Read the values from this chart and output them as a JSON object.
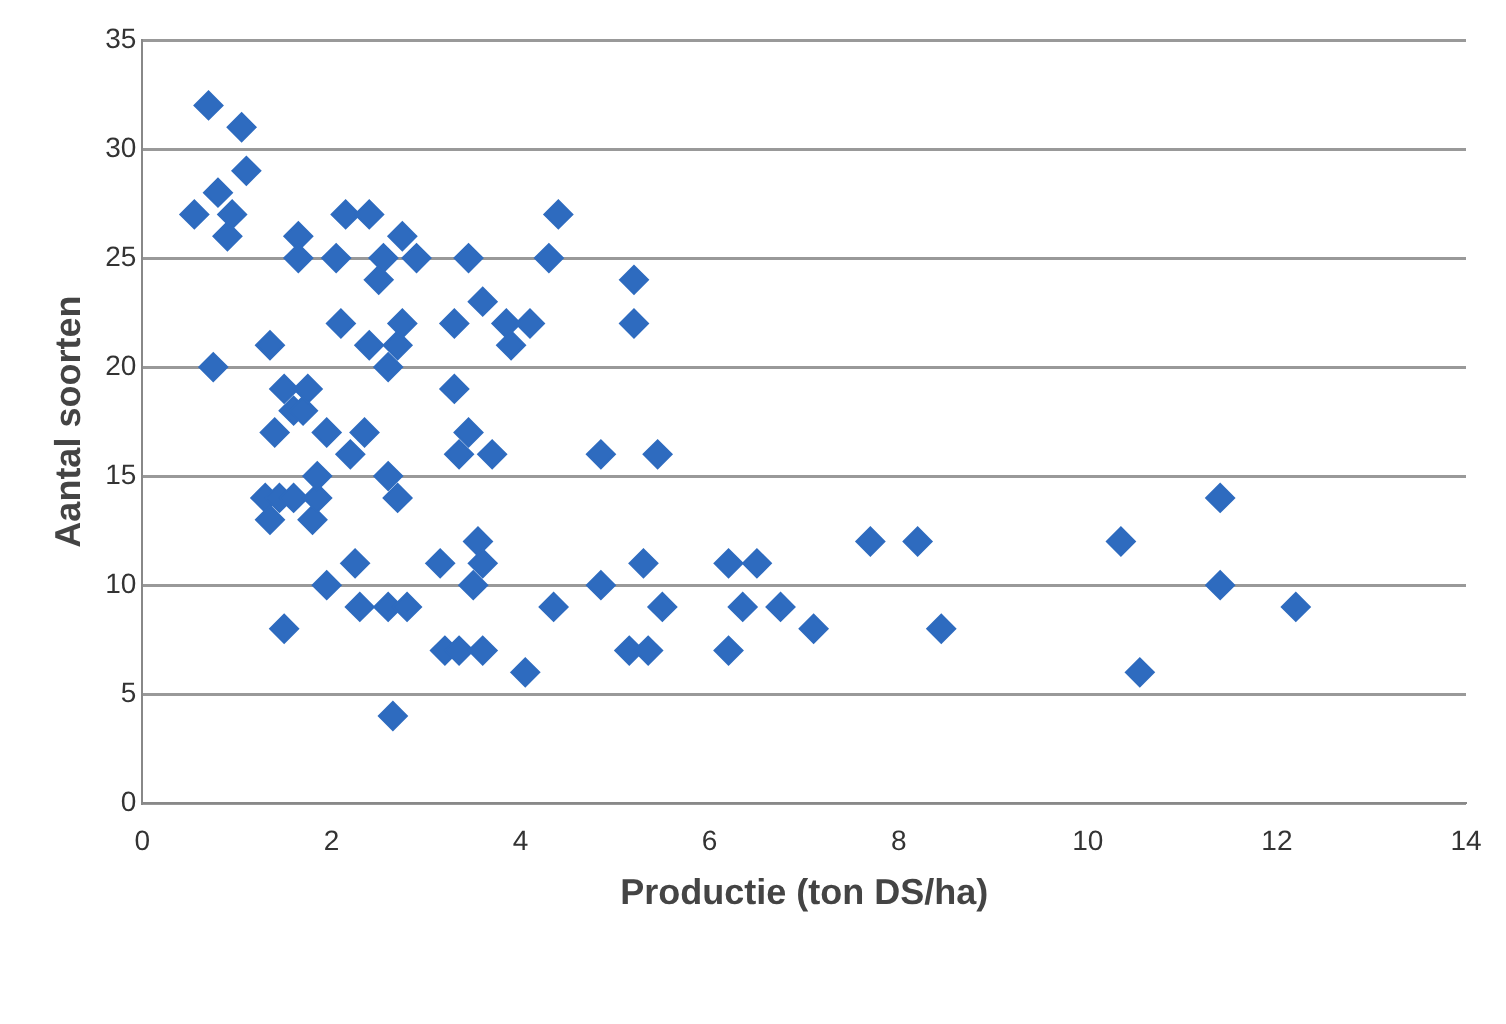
{
  "chart_data": {
    "type": "scatter",
    "xlabel": "Productie (ton DS/ha)",
    "ylabel": "Aantal soorten",
    "xlim": [
      0,
      14
    ],
    "xticks": [
      0,
      2,
      4,
      6,
      8,
      10,
      12,
      14
    ],
    "ylim": [
      0,
      35
    ],
    "yticks": [
      0,
      5,
      10,
      15,
      20,
      25,
      30,
      35
    ],
    "grid": "y",
    "legend": false,
    "marker": "diamond",
    "series": [
      {
        "color": "#2e6bbf",
        "x": [
          0.55,
          0.7,
          0.75,
          0.8,
          0.9,
          0.95,
          1.05,
          1.1,
          1.3,
          1.35,
          1.35,
          1.4,
          1.45,
          1.5,
          1.5,
          1.6,
          1.6,
          1.65,
          1.65,
          1.7,
          1.75,
          1.8,
          1.85,
          1.85,
          1.95,
          1.95,
          2.05,
          2.1,
          2.15,
          2.2,
          2.25,
          2.3,
          2.35,
          2.4,
          2.4,
          2.5,
          2.55,
          2.6,
          2.6,
          2.6,
          2.65,
          2.7,
          2.7,
          2.75,
          2.75,
          2.8,
          2.9,
          3.15,
          3.2,
          3.3,
          3.3,
          3.35,
          3.35,
          3.45,
          3.45,
          3.5,
          3.55,
          3.6,
          3.6,
          3.6,
          3.7,
          3.85,
          3.9,
          4.05,
          4.1,
          4.3,
          4.35,
          4.4,
          4.85,
          4.85,
          5.15,
          5.2,
          5.2,
          5.3,
          5.35,
          5.45,
          5.5,
          6.2,
          6.2,
          6.35,
          6.5,
          6.75,
          7.1,
          7.7,
          8.2,
          8.45,
          10.35,
          10.55,
          11.4,
          11.4,
          12.2
        ],
        "values": [
          27,
          32,
          20,
          28,
          26,
          27,
          31,
          29,
          14,
          21,
          13,
          17,
          14,
          8,
          19,
          14,
          18,
          26,
          25,
          18,
          19,
          13,
          14,
          15,
          17,
          10,
          25,
          22,
          27,
          16,
          11,
          9,
          17,
          27,
          21,
          24,
          25,
          20,
          15,
          9,
          4,
          21,
          14,
          26,
          22,
          9,
          25,
          11,
          7,
          22,
          19,
          7,
          16,
          25,
          17,
          10,
          12,
          7,
          23,
          11,
          16,
          22,
          21,
          6,
          22,
          25,
          9,
          27,
          16,
          10,
          7,
          24,
          22,
          11,
          7,
          16,
          9,
          11,
          7,
          9,
          11,
          9,
          8,
          12,
          12,
          8,
          12,
          6,
          14,
          10,
          9
        ]
      }
    ]
  }
}
